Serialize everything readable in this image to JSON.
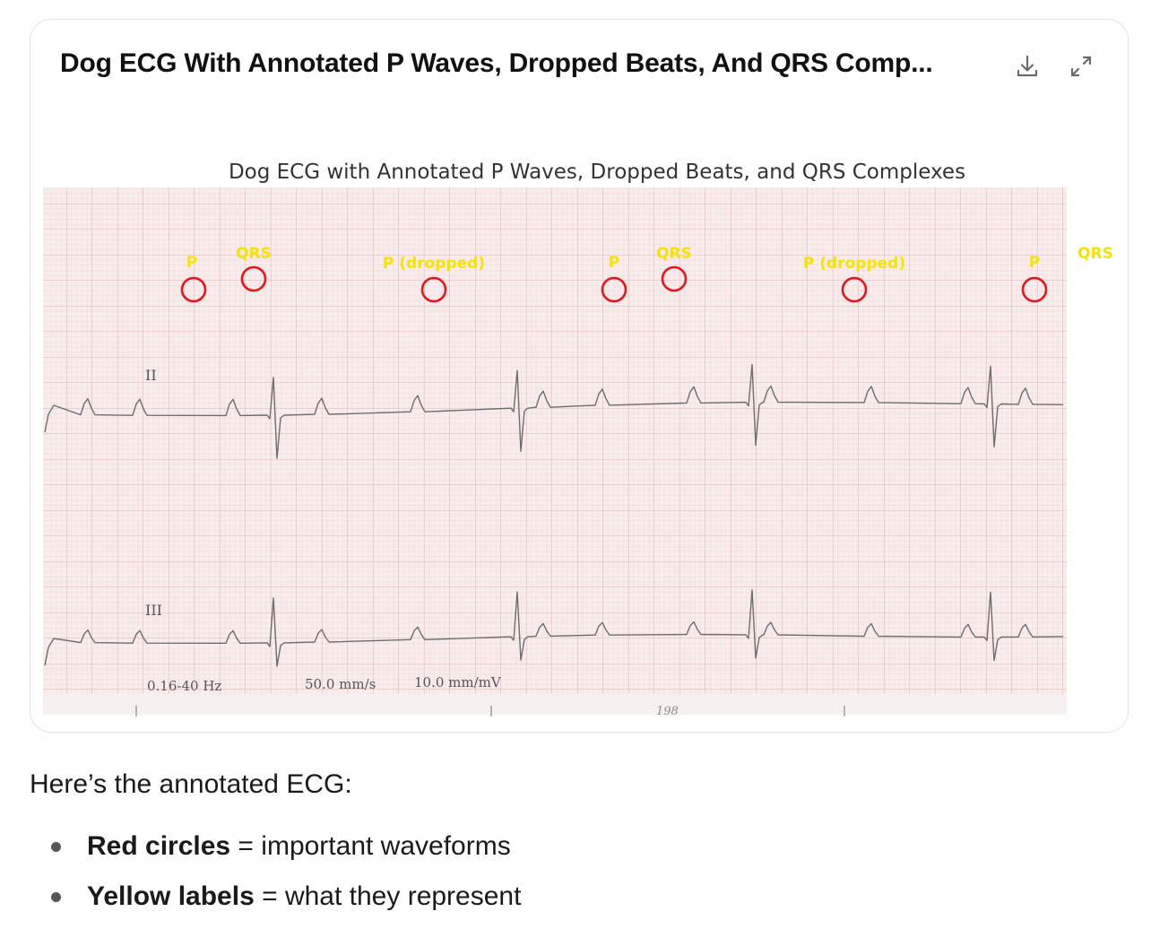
{
  "card": {
    "title": "Dog ECG With Annotated P Waves, Dropped Beats, And QRS Comp...",
    "download_icon": "download-icon",
    "expand_icon": "expand-icon"
  },
  "figure": {
    "title": "Dog ECG with Annotated P Waves, Dropped Beats, and QRS Complexes",
    "lead_labels": [
      "II",
      "III"
    ],
    "footer_labels": {
      "filter": "0.16-40 Hz",
      "speed": "50.0 mm/s",
      "gain": "10.0 mm/mV",
      "page_number": "198"
    },
    "annotations": [
      "P",
      "QRS",
      "P (dropped)",
      "P",
      "QRS",
      "P (dropped)",
      "P",
      "QRS"
    ],
    "colors": {
      "circle": "#e8141b",
      "label": "#f5e400",
      "grid_major": "#e6b9b9",
      "grid_minor": "#f1d8d8",
      "paper": "#f8ecec",
      "trace": "#6d6d6d"
    }
  },
  "message": {
    "intro": "Here’s the annotated ECG:",
    "bullets": [
      {
        "bold": "Red circles",
        "rest": " = important waveforms"
      },
      {
        "bold": "Yellow labels",
        "rest": " = what they represent"
      }
    ]
  }
}
